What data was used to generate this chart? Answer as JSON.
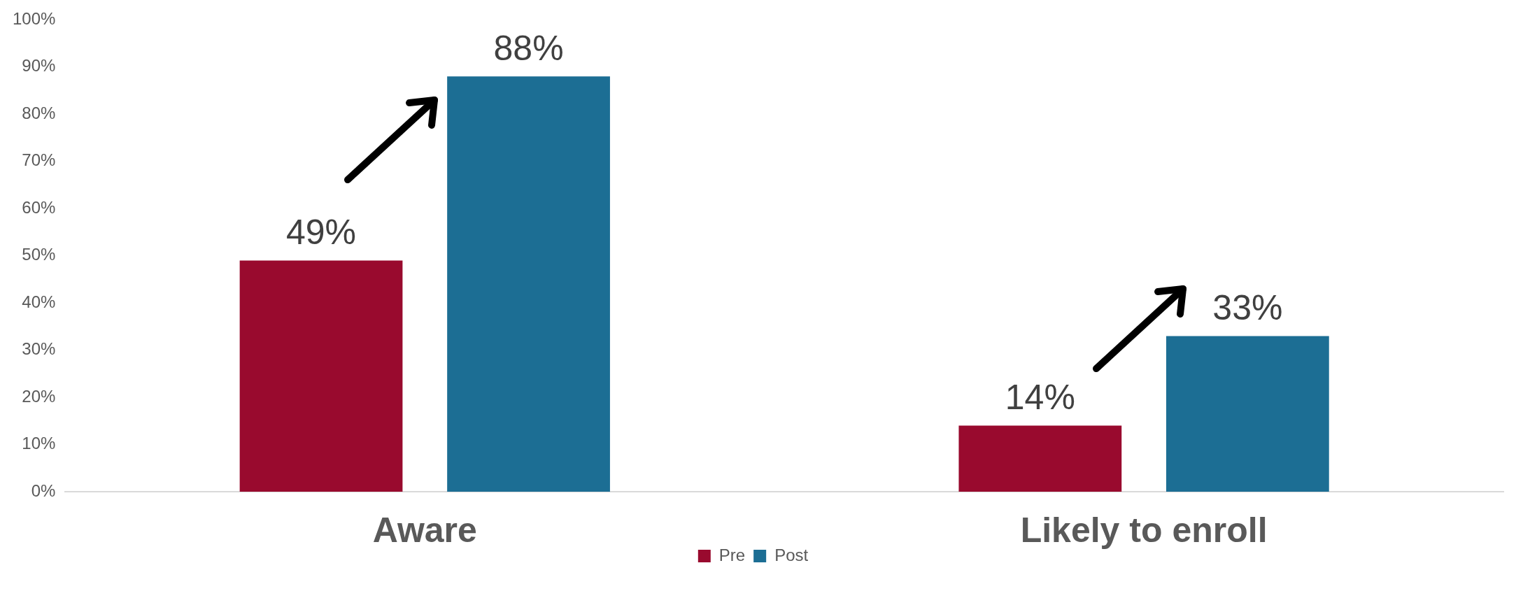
{
  "chart_data": {
    "type": "bar",
    "categories": [
      "Aware",
      "Likely to enroll"
    ],
    "series": [
      {
        "name": "Pre",
        "color": "#990a2e",
        "values": [
          49,
          14
        ],
        "value_labels": [
          "49%",
          "14%"
        ]
      },
      {
        "name": "Post",
        "color": "#1c6e94",
        "values": [
          88,
          33
        ],
        "value_labels": [
          "88%",
          "33%"
        ]
      }
    ],
    "ylim": [
      0,
      100
    ],
    "yticks": [
      {
        "value": 0,
        "label": "0%"
      },
      {
        "value": 10,
        "label": "10%"
      },
      {
        "value": 20,
        "label": "20%"
      },
      {
        "value": 30,
        "label": "30%"
      },
      {
        "value": 40,
        "label": "40%"
      },
      {
        "value": 50,
        "label": "50%"
      },
      {
        "value": 60,
        "label": "60%"
      },
      {
        "value": 70,
        "label": "70%"
      },
      {
        "value": 80,
        "label": "80%"
      },
      {
        "value": 90,
        "label": "90%"
      },
      {
        "value": 100,
        "label": "100%"
      }
    ],
    "grid": false,
    "legend": "bottom"
  }
}
